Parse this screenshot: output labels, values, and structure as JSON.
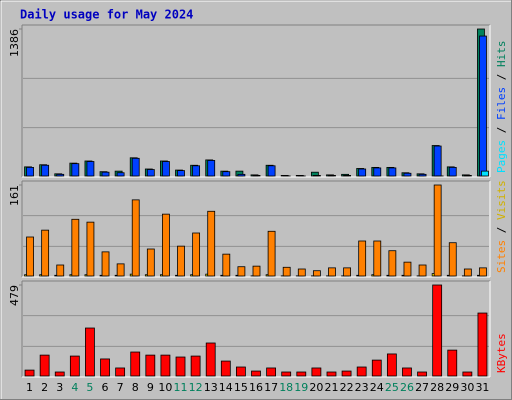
{
  "chart_data": {
    "type": "bar",
    "title": "Daily usage for May 2024",
    "categories": [
      "1",
      "2",
      "3",
      "4",
      "5",
      "6",
      "7",
      "8",
      "9",
      "10",
      "11",
      "12",
      "13",
      "14",
      "15",
      "16",
      "17",
      "18",
      "19",
      "20",
      "21",
      "22",
      "23",
      "24",
      "25",
      "26",
      "27",
      "28",
      "29",
      "30",
      "31"
    ],
    "category_colors": [
      "#000000",
      "#000000",
      "#000000",
      "#00805c",
      "#00805c",
      "#000000",
      "#000000",
      "#000000",
      "#000000",
      "#000000",
      "#00805c",
      "#00805c",
      "#000000",
      "#000000",
      "#000000",
      "#000000",
      "#000000",
      "#00805c",
      "#00805c",
      "#000000",
      "#000000",
      "#000000",
      "#000000",
      "#000000",
      "#00805c",
      "#00805c",
      "#000000",
      "#000000",
      "#000000",
      "#000000",
      "#000000"
    ],
    "legend_separator": " / ",
    "panels": [
      {
        "ylim": [
          0,
          1386
        ],
        "yticks": [
          1386
        ],
        "series": [
          {
            "name": "Hits",
            "color": "#00805c",
            "values": [
              95,
              115,
              30,
              130,
              150,
              50,
              55,
              180,
              75,
              150,
              65,
              110,
              160,
              55,
              55,
              20,
              110,
              15,
              15,
              45,
              20,
              25,
              80,
              90,
              90,
              40,
              30,
              295,
              95,
              20,
              1386
            ]
          },
          {
            "name": "Files",
            "color": "#0040ff",
            "values": [
              90,
              110,
              25,
              125,
              145,
              45,
              40,
              175,
              70,
              145,
              60,
              105,
              155,
              50,
              25,
              15,
              105,
              10,
              10,
              15,
              15,
              15,
              75,
              85,
              85,
              35,
              25,
              290,
              90,
              15,
              1320
            ]
          },
          {
            "name": "Pages",
            "color": "#00e0ff",
            "values": [
              5,
              5,
              3,
              5,
              5,
              3,
              3,
              8,
              5,
              8,
              3,
              5,
              8,
              3,
              3,
              2,
              5,
              2,
              2,
              2,
              2,
              2,
              3,
              5,
              5,
              3,
              2,
              10,
              3,
              2,
              55
            ]
          }
        ]
      },
      {
        "ylim": [
          0,
          161
        ],
        "yticks": [
          161
        ],
        "series": [
          {
            "name": "Visits",
            "color": "#ffff00",
            "values": [
              4,
              4,
              3,
              4,
              4,
              3,
              3,
              5,
              4,
              4,
              3,
              4,
              5,
              3,
              3,
              2,
              4,
              2,
              2,
              2,
              2,
              2,
              3,
              4,
              3,
              3,
              2,
              6,
              3,
              2,
              3
            ]
          },
          {
            "name": "Sites",
            "color": "#ff8000",
            "values": [
              70,
              82,
              21,
              101,
              96,
              44,
              23,
              135,
              49,
              110,
              54,
              77,
              115,
              40,
              18,
              19,
              80,
              17,
              14,
              11,
              16,
              16,
              63,
              63,
              46,
              26,
              21,
              161,
              60,
              14,
              16
            ]
          }
        ]
      },
      {
        "ylim": [
          0,
          479
        ],
        "yticks": [
          479
        ],
        "series": [
          {
            "name": "KBytes",
            "color": "#ff0000",
            "values": [
              36,
              114,
              26,
              109,
              255,
              94,
              47,
              130,
              114,
              114,
              104,
              109,
              177,
              83,
              52,
              31,
              47,
              26,
              26,
              47,
              26,
              31,
              52,
              88,
              120,
              47,
              26,
              479,
              140,
              26,
              333
            ]
          }
        ]
      }
    ]
  }
}
